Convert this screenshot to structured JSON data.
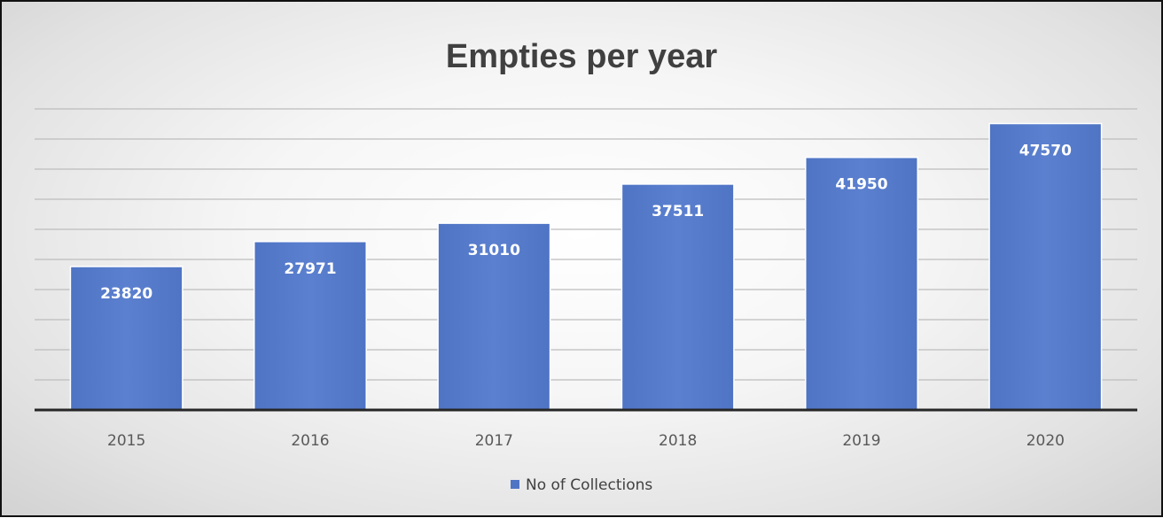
{
  "chart_data": {
    "type": "bar",
    "title": "Empties per year",
    "categories": [
      "2015",
      "2016",
      "2017",
      "2018",
      "2019",
      "2020"
    ],
    "series": [
      {
        "name": "No of Collections",
        "values": [
          23820,
          27971,
          31010,
          37511,
          41950,
          47570
        ],
        "color": "#5b7fcc"
      }
    ],
    "xlabel": "",
    "ylabel": "",
    "ylim": [
      0,
      50000
    ],
    "grid": true,
    "legend": "bottom",
    "data_labels": true,
    "label_color": "#ffffff"
  }
}
